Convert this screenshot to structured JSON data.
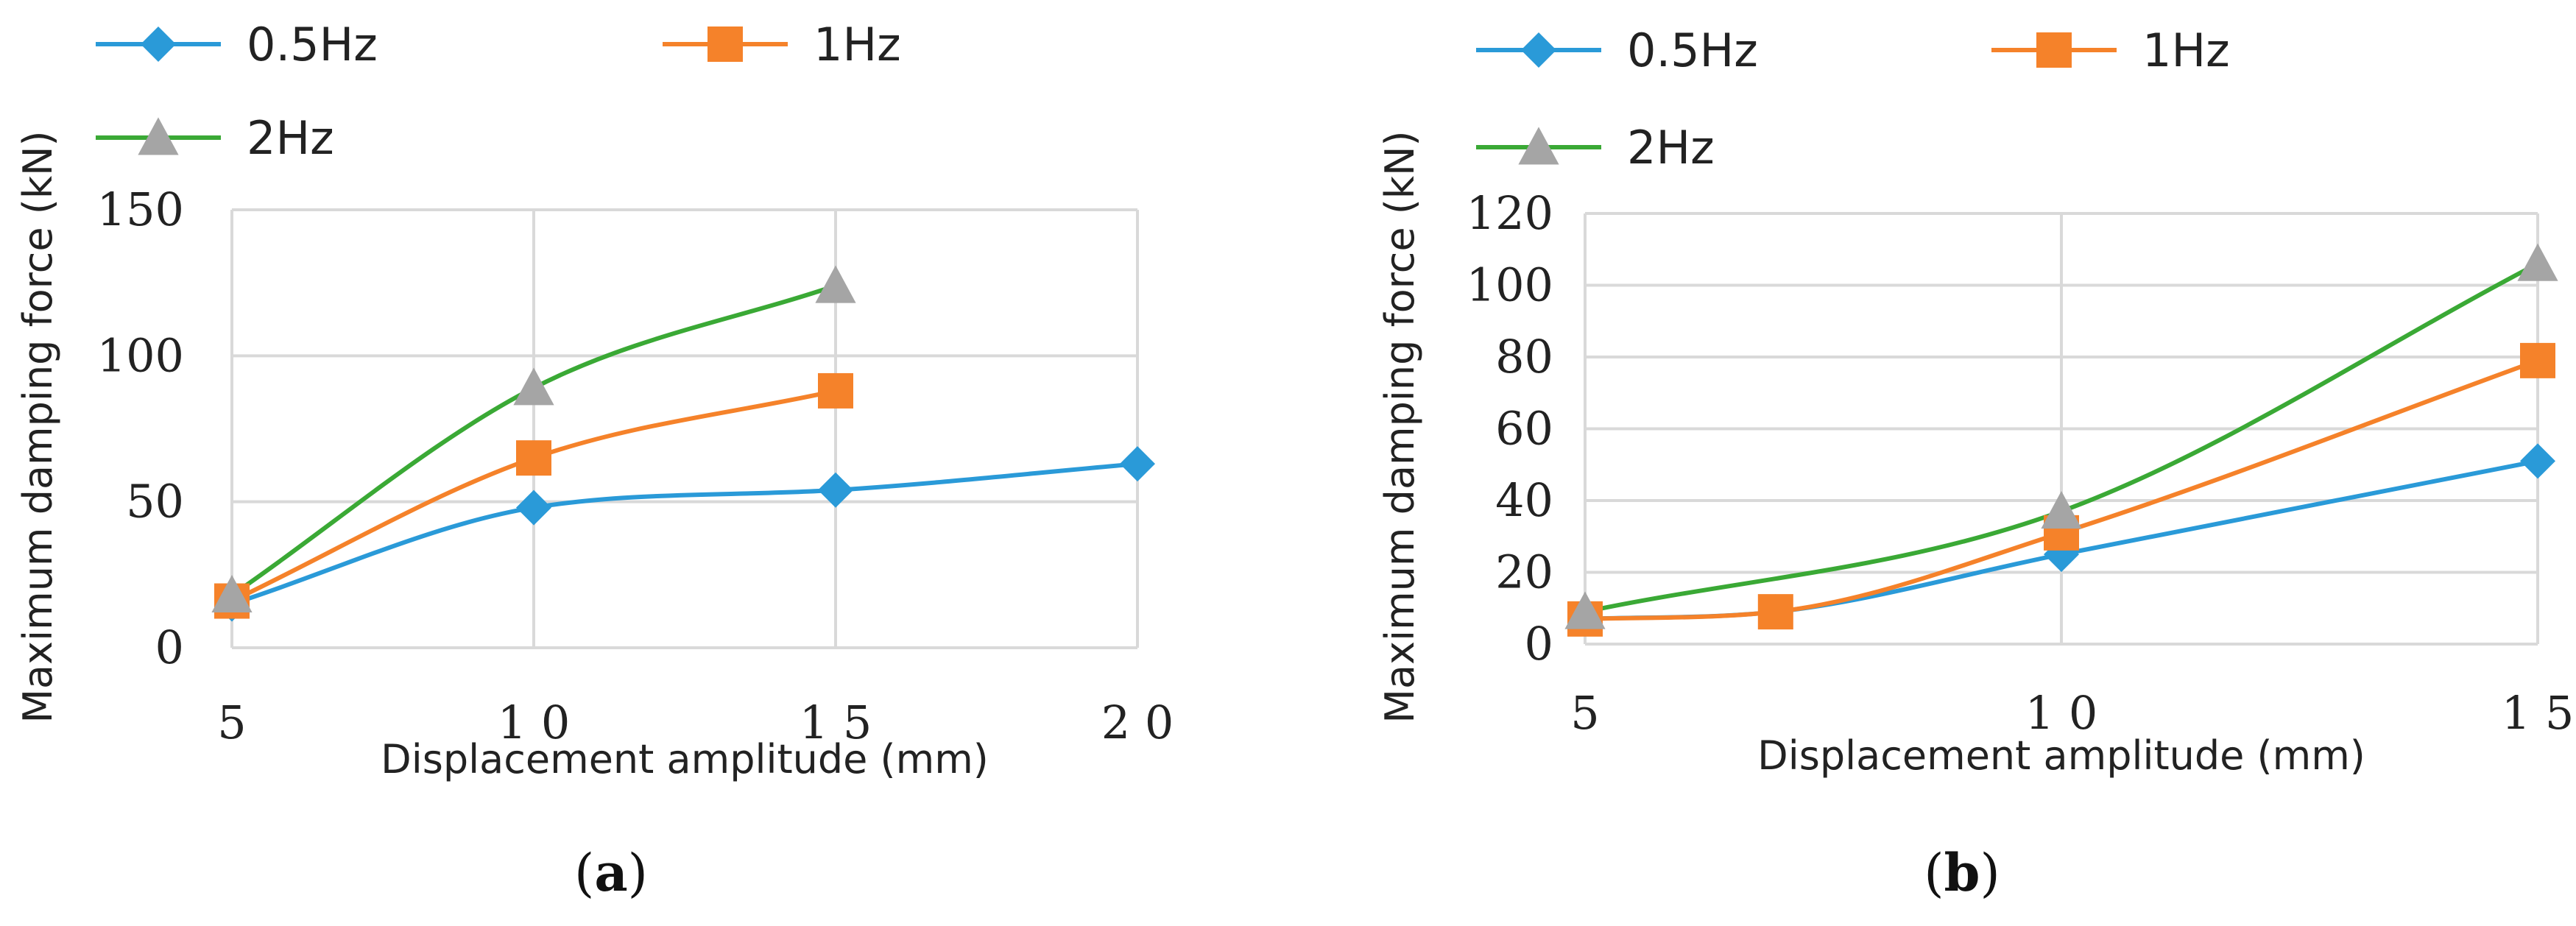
{
  "chart_data": [
    {
      "type": "line",
      "panel": "a",
      "caption": "(a)",
      "xlabel": "Displacement amplitude (mm)",
      "ylabel": "Maximum damping force (kN)",
      "xlim": [
        5,
        20
      ],
      "ylim": [
        0,
        150
      ],
      "xticks": [
        5,
        10,
        15,
        20
      ],
      "xtick_labels": [
        "5",
        "1 0",
        "1 5",
        "2 0"
      ],
      "yticks": [
        0,
        50,
        100,
        150
      ],
      "ytick_labels": [
        "0",
        "50",
        "100",
        "150"
      ],
      "grid": true,
      "legend_position": "top-left",
      "series": [
        {
          "name": "0.5Hz",
          "color": "#2a9ad8",
          "marker": "diamond",
          "x": [
            5,
            10,
            15,
            20
          ],
          "y": [
            15,
            48,
            54,
            63
          ]
        },
        {
          "name": "1Hz",
          "color": "#f5822a",
          "marker": "square",
          "x": [
            5,
            10,
            15
          ],
          "y": [
            16,
            65,
            88
          ]
        },
        {
          "name": "2Hz",
          "color": "#3aa935",
          "marker_color": "#a5a5a5",
          "marker": "triangle",
          "x": [
            5,
            10,
            15
          ],
          "y": [
            18,
            89,
            124
          ]
        }
      ]
    },
    {
      "type": "line",
      "panel": "b",
      "caption": "(b)",
      "xlabel": "Displacement amplitude (mm)",
      "ylabel": "Maximum damping force (kN)",
      "xlim": [
        5,
        15
      ],
      "ylim": [
        0,
        120
      ],
      "xticks": [
        5,
        10,
        15
      ],
      "xtick_labels": [
        "5",
        "1 0",
        "1 5"
      ],
      "yticks": [
        0,
        20,
        40,
        60,
        80,
        100,
        120
      ],
      "ytick_labels": [
        "0",
        "20",
        "40",
        "60",
        "80",
        "100",
        "120"
      ],
      "grid": true,
      "legend_position": "top-left",
      "series": [
        {
          "name": "0.5Hz",
          "color": "#2a9ad8",
          "marker": "diamond",
          "x": [
            5,
            7,
            10,
            15
          ],
          "y": [
            7,
            9,
            25,
            51
          ]
        },
        {
          "name": "1Hz",
          "color": "#f5822a",
          "marker": "square",
          "x": [
            5,
            7,
            10,
            15
          ],
          "y": [
            7,
            9,
            31,
            79
          ]
        },
        {
          "name": "2Hz",
          "color": "#3aa935",
          "marker_color": "#a5a5a5",
          "marker": "triangle",
          "x": [
            5,
            10,
            15
          ],
          "y": [
            9,
            37,
            106
          ]
        }
      ]
    }
  ]
}
